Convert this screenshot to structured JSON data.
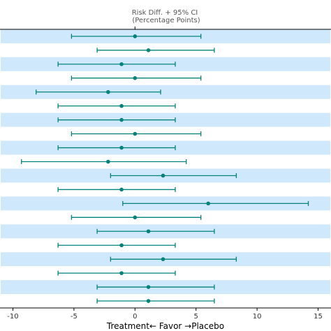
{
  "chart_data": {
    "type": "forest",
    "title_line1": "Risk Diff. + 95% CI",
    "title_line2": "(Percentage Points)",
    "xlabel": "Treatment← Favor →Placebo",
    "xlim": [
      -11,
      16
    ],
    "xticks": [
      -10,
      -5,
      0,
      5,
      10,
      15
    ],
    "xtick_labels": [
      "-10",
      "-5",
      "0",
      "5",
      "10",
      "15"
    ],
    "ref_line": 0,
    "band_color": "#d0e8fb",
    "marker_color": "#00837a",
    "rows": [
      {
        "est": 0.0,
        "lo": -5.2,
        "hi": 5.4
      },
      {
        "est": 1.1,
        "lo": -3.1,
        "hi": 6.5
      },
      {
        "est": -1.1,
        "lo": -6.3,
        "hi": 3.3
      },
      {
        "est": 0.0,
        "lo": -5.2,
        "hi": 5.4
      },
      {
        "est": -2.2,
        "lo": -8.1,
        "hi": 2.1
      },
      {
        "est": -1.1,
        "lo": -6.3,
        "hi": 3.3
      },
      {
        "est": -1.1,
        "lo": -6.3,
        "hi": 3.3
      },
      {
        "est": 0.0,
        "lo": -5.2,
        "hi": 5.4
      },
      {
        "est": -1.1,
        "lo": -6.3,
        "hi": 3.3
      },
      {
        "est": -2.2,
        "lo": -9.3,
        "hi": 4.2
      },
      {
        "est": 2.3,
        "lo": -2.0,
        "hi": 8.3
      },
      {
        "est": -1.1,
        "lo": -6.3,
        "hi": 3.3
      },
      {
        "est": 6.0,
        "lo": -1.0,
        "hi": 14.2
      },
      {
        "est": 0.0,
        "lo": -5.2,
        "hi": 5.4
      },
      {
        "est": 1.1,
        "lo": -3.1,
        "hi": 6.5
      },
      {
        "est": -1.1,
        "lo": -6.3,
        "hi": 3.3
      },
      {
        "est": 2.3,
        "lo": -2.0,
        "hi": 8.3
      },
      {
        "est": -1.1,
        "lo": -6.3,
        "hi": 3.3
      },
      {
        "est": 1.1,
        "lo": -3.1,
        "hi": 6.5
      },
      {
        "est": 1.1,
        "lo": -3.1,
        "hi": 6.5
      }
    ]
  }
}
